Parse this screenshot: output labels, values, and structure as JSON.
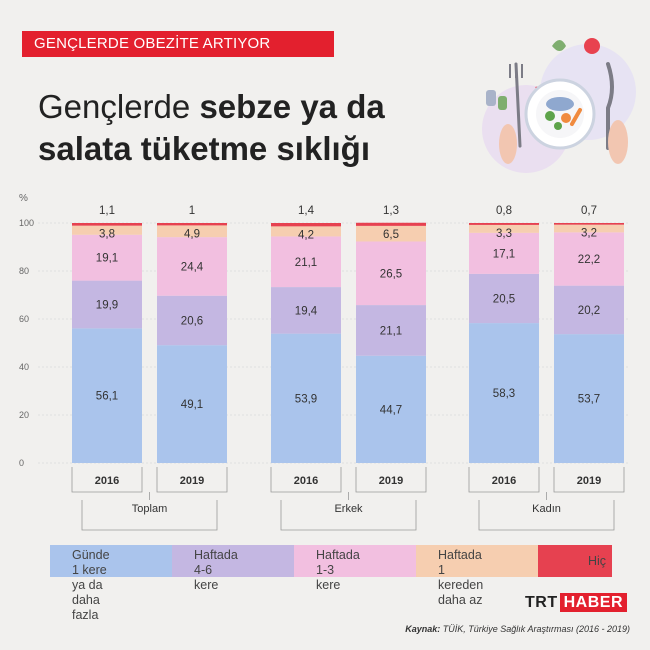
{
  "header": {
    "banner": "GENÇLERDE OBEZİTE ARTIYOR",
    "title_light": "Gençlerde ",
    "title_bold_1": "sebze ya da",
    "title_bold_2": "salata tüketme sıklığı"
  },
  "chart_data": {
    "type": "bar",
    "stacked": true,
    "ylabel": "%",
    "ylim": [
      0,
      100
    ],
    "yticks": [
      0,
      20,
      40,
      60,
      80,
      100
    ],
    "grid": true,
    "groups": [
      {
        "name": "Toplam",
        "years": [
          "2016",
          "2019"
        ]
      },
      {
        "name": "Erkek",
        "years": [
          "2016",
          "2019"
        ]
      },
      {
        "name": "Kadın",
        "years": [
          "2016",
          "2019"
        ]
      }
    ],
    "categories": [
      "Toplam 2016",
      "Toplam 2019",
      "Erkek 2016",
      "Erkek 2019",
      "Kadın 2016",
      "Kadın 2019"
    ],
    "series": [
      {
        "name": "Günde 1 kere ya da daha fazla",
        "color": "#aac4ec",
        "values": [
          56.1,
          49.1,
          53.9,
          44.7,
          58.3,
          53.7
        ],
        "labels": [
          "56,1",
          "49,1",
          "53,9",
          "44,7",
          "58,3",
          "53,7"
        ]
      },
      {
        "name": "Haftada 4-6 kere",
        "color": "#c4b7e2",
        "values": [
          19.9,
          20.6,
          19.4,
          21.1,
          20.5,
          20.2
        ],
        "labels": [
          "19,9",
          "20,6",
          "19,4",
          "21,1",
          "20,5",
          "20,2"
        ]
      },
      {
        "name": "Haftada 1-3 kere",
        "color": "#f2bfe0",
        "values": [
          19.1,
          24.4,
          21.1,
          26.5,
          17.1,
          22.2
        ],
        "labels": [
          "19,1",
          "24,4",
          "21,1",
          "26,5",
          "17,1",
          "22,2"
        ]
      },
      {
        "name": "Haftada 1 kereden daha az",
        "color": "#f6ceb0",
        "values": [
          3.8,
          4.9,
          4.2,
          6.5,
          3.3,
          3.2
        ],
        "labels": [
          "3,8",
          "4,9",
          "4,2",
          "6,5",
          "3,3",
          "3,2"
        ]
      },
      {
        "name": "Hiç",
        "color": "#e64150",
        "values": [
          1.1,
          1.0,
          1.4,
          1.3,
          0.8,
          0.7
        ],
        "labels": [
          "1,1",
          "1",
          "1,4",
          "1,3",
          "0,8",
          "0,7"
        ]
      }
    ],
    "legend": {
      "position": "bottom",
      "items": [
        {
          "label": "Günde 1 kere\nya da daha fazla",
          "color": "#aac4ec"
        },
        {
          "label": "Haftada\n4-6 kere",
          "color": "#c4b7e2"
        },
        {
          "label": "Haftada\n1-3 kere",
          "color": "#f2bfe0"
        },
        {
          "label": "Haftada 1\nkereden daha az",
          "color": "#f6ceb0"
        },
        {
          "label": "Hiç",
          "color": "#e64150"
        }
      ]
    }
  },
  "footer": {
    "logo_trt": "TRT",
    "logo_haber": "HABER",
    "source_label": "Kaynak:",
    "source_text": " TÜİK, Türkiye Sağlık Araştırması (2016 - 2019)"
  },
  "colors": {
    "accent": "#e3202e",
    "background": "#f1f0ee"
  },
  "icons": [
    "salad-plate-icon",
    "fork-icon",
    "knife-icon",
    "tomato-icon",
    "pepper-shaker-icon"
  ]
}
